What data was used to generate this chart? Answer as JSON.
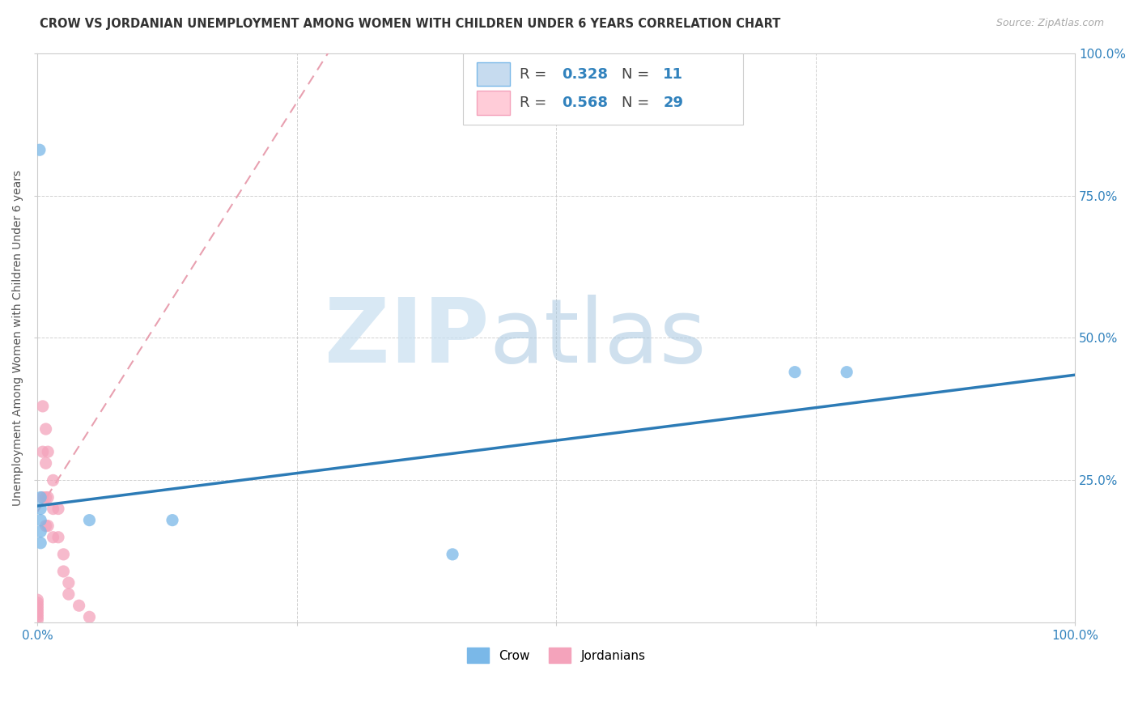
{
  "title": "CROW VS JORDANIAN UNEMPLOYMENT AMONG WOMEN WITH CHILDREN UNDER 6 YEARS CORRELATION CHART",
  "source": "Source: ZipAtlas.com",
  "ylabel": "Unemployment Among Women with Children Under 6 years",
  "crow_color": "#7ab8e8",
  "crow_color_light": "#c6dbef",
  "jordanian_color": "#f4a3bb",
  "trend_crow_color": "#2c7bb6",
  "dashed_line_color": "#e8a0b0",
  "crow_R": 0.328,
  "crow_N": 11,
  "jord_R": 0.568,
  "jord_N": 29,
  "crow_points_x": [
    0.002,
    0.05,
    0.13,
    0.4,
    0.73,
    0.78,
    0.003,
    0.003,
    0.003,
    0.003,
    0.003
  ],
  "crow_points_y": [
    0.83,
    0.18,
    0.18,
    0.12,
    0.44,
    0.44,
    0.22,
    0.2,
    0.18,
    0.16,
    0.14
  ],
  "jordanian_points_x": [
    0.0,
    0.0,
    0.0,
    0.0,
    0.0,
    0.0,
    0.0,
    0.0,
    0.005,
    0.005,
    0.005,
    0.008,
    0.008,
    0.008,
    0.008,
    0.01,
    0.01,
    0.01,
    0.015,
    0.015,
    0.015,
    0.02,
    0.02,
    0.025,
    0.025,
    0.03,
    0.03,
    0.04,
    0.05
  ],
  "jordanian_points_y": [
    0.005,
    0.01,
    0.015,
    0.02,
    0.025,
    0.03,
    0.035,
    0.04,
    0.38,
    0.3,
    0.22,
    0.34,
    0.28,
    0.22,
    0.17,
    0.3,
    0.22,
    0.17,
    0.25,
    0.2,
    0.15,
    0.2,
    0.15,
    0.12,
    0.09,
    0.07,
    0.05,
    0.03,
    0.01
  ],
  "crow_trend_x": [
    0.0,
    1.0
  ],
  "crow_trend_y": [
    0.205,
    0.435
  ],
  "jord_trend_x": [
    0.0,
    0.28
  ],
  "jord_trend_y": [
    0.195,
    1.0
  ],
  "xlim": [
    0.0,
    1.0
  ],
  "ylim": [
    0.0,
    1.0
  ],
  "background_color": "#ffffff",
  "grid_color": "#cccccc",
  "right_tick_color": "#3182bd",
  "tick_color_x": "#3182bd"
}
